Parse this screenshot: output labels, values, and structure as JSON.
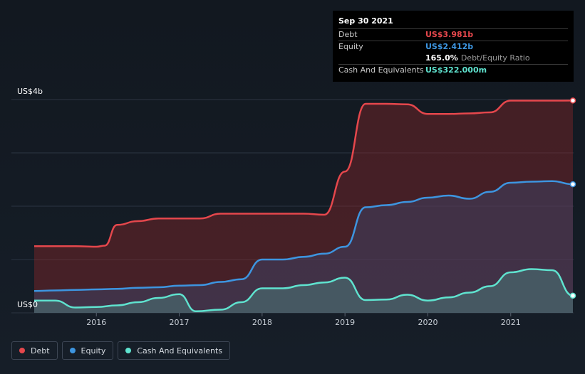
{
  "tooltip": {
    "date": "Sep 30 2021",
    "rows": [
      {
        "label": "Debt",
        "value": "US$3.981b",
        "color": "#e5474c"
      },
      {
        "label": "Equity",
        "value": "US$2.412b",
        "color": "#3d95e0"
      },
      {
        "label": "",
        "value": "165.0%",
        "sub": "Debt/Equity Ratio",
        "color": "#ffffff"
      },
      {
        "label": "Cash And Equivalents",
        "value": "US$322.000m",
        "color": "#5fe3cf"
      }
    ]
  },
  "legend": [
    {
      "label": "Debt",
      "color": "#e5474c"
    },
    {
      "label": "Equity",
      "color": "#3d95e0"
    },
    {
      "label": "Cash And Equivalents",
      "color": "#5fe3cf"
    }
  ],
  "chart_data": {
    "type": "area",
    "y_top_label": "US$4b",
    "y_bottom_label": "US$0",
    "ylim": [
      0,
      4
    ],
    "xlim": [
      2015.25,
      2021.75
    ],
    "x_ticks": [
      "2016",
      "2017",
      "2018",
      "2019",
      "2020",
      "2021"
    ],
    "grid": true,
    "series": [
      {
        "name": "Debt",
        "color": "#e5474c",
        "points": [
          [
            2015.25,
            1.25
          ],
          [
            2015.5,
            1.25
          ],
          [
            2015.75,
            1.25
          ],
          [
            2016.0,
            1.24
          ],
          [
            2016.1,
            1.26
          ],
          [
            2016.25,
            1.65
          ],
          [
            2016.5,
            1.72
          ],
          [
            2016.75,
            1.77
          ],
          [
            2017.0,
            1.77
          ],
          [
            2017.25,
            1.77
          ],
          [
            2017.5,
            1.86
          ],
          [
            2017.75,
            1.86
          ],
          [
            2018.0,
            1.86
          ],
          [
            2018.25,
            1.86
          ],
          [
            2018.5,
            1.86
          ],
          [
            2018.75,
            1.84
          ],
          [
            2019.0,
            2.65
          ],
          [
            2019.25,
            3.92
          ],
          [
            2019.5,
            3.92
          ],
          [
            2019.75,
            3.91
          ],
          [
            2020.0,
            3.73
          ],
          [
            2020.25,
            3.73
          ],
          [
            2020.5,
            3.74
          ],
          [
            2020.75,
            3.76
          ],
          [
            2021.0,
            3.98
          ],
          [
            2021.25,
            3.98
          ],
          [
            2021.5,
            3.98
          ],
          [
            2021.75,
            3.981
          ]
        ]
      },
      {
        "name": "Equity",
        "color": "#3d95e0",
        "points": [
          [
            2015.25,
            0.41
          ],
          [
            2015.5,
            0.42
          ],
          [
            2015.75,
            0.43
          ],
          [
            2016.0,
            0.44
          ],
          [
            2016.25,
            0.45
          ],
          [
            2016.5,
            0.47
          ],
          [
            2016.75,
            0.48
          ],
          [
            2017.0,
            0.51
          ],
          [
            2017.25,
            0.52
          ],
          [
            2017.5,
            0.58
          ],
          [
            2017.75,
            0.63
          ],
          [
            2018.0,
            1.0
          ],
          [
            2018.25,
            1.0
          ],
          [
            2018.5,
            1.05
          ],
          [
            2018.75,
            1.11
          ],
          [
            2019.0,
            1.24
          ],
          [
            2019.25,
            1.98
          ],
          [
            2019.5,
            2.02
          ],
          [
            2019.75,
            2.08
          ],
          [
            2020.0,
            2.16
          ],
          [
            2020.25,
            2.2
          ],
          [
            2020.5,
            2.14
          ],
          [
            2020.75,
            2.27
          ],
          [
            2021.0,
            2.44
          ],
          [
            2021.25,
            2.46
          ],
          [
            2021.5,
            2.47
          ],
          [
            2021.75,
            2.412
          ]
        ]
      },
      {
        "name": "Cash And Equivalents",
        "color": "#5fe3cf",
        "points": [
          [
            2015.25,
            0.23
          ],
          [
            2015.5,
            0.23
          ],
          [
            2015.75,
            0.1
          ],
          [
            2016.0,
            0.11
          ],
          [
            2016.25,
            0.14
          ],
          [
            2016.5,
            0.2
          ],
          [
            2016.75,
            0.28
          ],
          [
            2017.0,
            0.35
          ],
          [
            2017.2,
            0.03
          ],
          [
            2017.5,
            0.06
          ],
          [
            2017.75,
            0.2
          ],
          [
            2018.0,
            0.46
          ],
          [
            2018.25,
            0.46
          ],
          [
            2018.5,
            0.52
          ],
          [
            2018.75,
            0.57
          ],
          [
            2019.0,
            0.66
          ],
          [
            2019.25,
            0.24
          ],
          [
            2019.5,
            0.25
          ],
          [
            2019.75,
            0.34
          ],
          [
            2020.0,
            0.23
          ],
          [
            2020.25,
            0.29
          ],
          [
            2020.5,
            0.38
          ],
          [
            2020.75,
            0.5
          ],
          [
            2021.0,
            0.76
          ],
          [
            2021.25,
            0.82
          ],
          [
            2021.5,
            0.8
          ],
          [
            2021.75,
            0.322
          ]
        ]
      }
    ]
  }
}
